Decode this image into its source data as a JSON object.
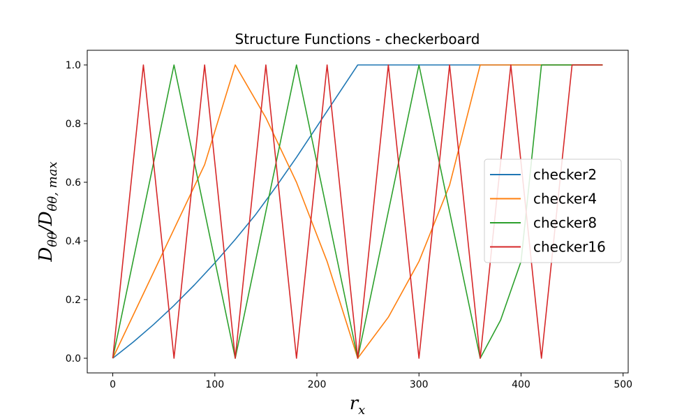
{
  "chart_data": {
    "type": "line",
    "title": "Structure Functions - checkerboard",
    "xlabel": "r",
    "xlabel_sub": "x",
    "ylabel": "D",
    "ylabel_sub": "θθ",
    "ylabel_mid": "/D",
    "ylabel_sub2": "θθ, max",
    "xlim": [
      -25,
      505
    ],
    "ylim": [
      -0.05,
      1.05
    ],
    "xticks": [
      0,
      100,
      200,
      300,
      400,
      500
    ],
    "xtick_labels": [
      "0",
      "100",
      "200",
      "300",
      "400",
      "500"
    ],
    "yticks": [
      0.0,
      0.2,
      0.4,
      0.6,
      0.8,
      1.0
    ],
    "ytick_labels": [
      "0.0",
      "0.2",
      "0.4",
      "0.6",
      "0.8",
      "1.0"
    ],
    "grid": false,
    "legend_position": "center-right",
    "series": [
      {
        "name": "checker2",
        "color": "#1f77b4",
        "points": [
          [
            0,
            0
          ],
          [
            20,
            0.055
          ],
          [
            40,
            0.115
          ],
          [
            60,
            0.18
          ],
          [
            80,
            0.25
          ],
          [
            100,
            0.325
          ],
          [
            120,
            0.405
          ],
          [
            140,
            0.49
          ],
          [
            160,
            0.585
          ],
          [
            180,
            0.685
          ],
          [
            200,
            0.79
          ],
          [
            220,
            0.895
          ],
          [
            240,
            1.0
          ],
          [
            480,
            1.0
          ]
        ]
      },
      {
        "name": "checker4",
        "color": "#ff7f0e",
        "points": [
          [
            0,
            0
          ],
          [
            30,
            0.22
          ],
          [
            60,
            0.44
          ],
          [
            90,
            0.66
          ],
          [
            120,
            1.0
          ],
          [
            150,
            0.82
          ],
          [
            180,
            0.6
          ],
          [
            210,
            0.33
          ],
          [
            240,
            0
          ],
          [
            270,
            0.14
          ],
          [
            300,
            0.33
          ],
          [
            330,
            0.59
          ],
          [
            360,
            1.0
          ],
          [
            420,
            1.0
          ],
          [
            480,
            1.0
          ]
        ]
      },
      {
        "name": "checker8",
        "color": "#2ca02c",
        "points": [
          [
            0,
            0
          ],
          [
            60,
            1.0
          ],
          [
            120,
            0
          ],
          [
            180,
            1.0
          ],
          [
            240,
            0
          ],
          [
            300,
            1.0
          ],
          [
            360,
            0
          ],
          [
            380,
            0.13
          ],
          [
            400,
            0.33
          ],
          [
            420,
            1.0
          ],
          [
            450,
            1.0
          ],
          [
            480,
            1.0
          ]
        ]
      },
      {
        "name": "checker16",
        "color": "#d62728",
        "points": [
          [
            0,
            0
          ],
          [
            30,
            1.0
          ],
          [
            60,
            0
          ],
          [
            90,
            1.0
          ],
          [
            120,
            0
          ],
          [
            150,
            1.0
          ],
          [
            180,
            0
          ],
          [
            210,
            1.0
          ],
          [
            240,
            0
          ],
          [
            270,
            1.0
          ],
          [
            300,
            0
          ],
          [
            330,
            1.0
          ],
          [
            360,
            0
          ],
          [
            390,
            1.0
          ],
          [
            420,
            0
          ],
          [
            450,
            1.0
          ],
          [
            480,
            1.0
          ]
        ]
      }
    ]
  }
}
